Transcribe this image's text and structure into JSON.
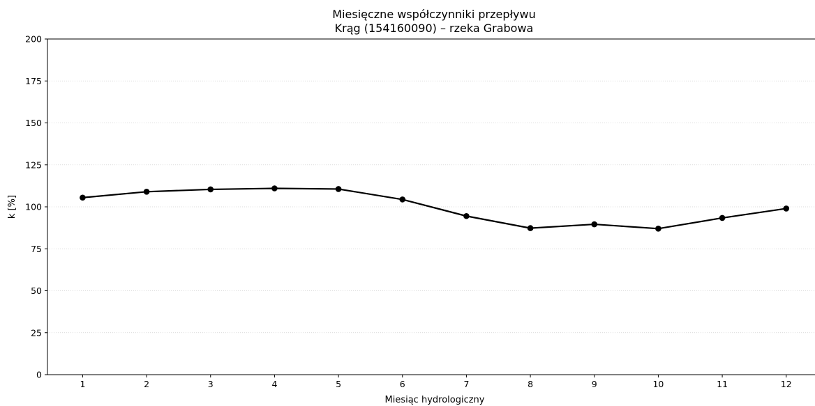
{
  "chart_data": {
    "type": "line",
    "title": "Miesięczne współczynniki przepływu",
    "subtitle": "Krąg (154160090) – rzeka Grabowa",
    "xlabel": "Miesiąc hydrologiczny",
    "ylabel": "k [%]",
    "x": [
      1,
      2,
      3,
      4,
      5,
      6,
      7,
      8,
      9,
      10,
      11,
      12
    ],
    "x_ticks": [
      "1",
      "2",
      "3",
      "4",
      "5",
      "6",
      "7",
      "8",
      "9",
      "10",
      "11",
      "12"
    ],
    "y_ticks": [
      "0",
      "25",
      "50",
      "75",
      "100",
      "125",
      "150",
      "175",
      "200"
    ],
    "ylim": [
      0,
      200
    ],
    "xlim": [
      0.45,
      12.45
    ],
    "grid": "horizontal, dotted",
    "series": [
      {
        "values": [
          105.5,
          109.0,
          110.4,
          111.0,
          110.6,
          104.4,
          94.5,
          87.3,
          89.6,
          87.0,
          93.4,
          99.0
        ],
        "color": "#000000",
        "marker": "circle"
      }
    ]
  }
}
